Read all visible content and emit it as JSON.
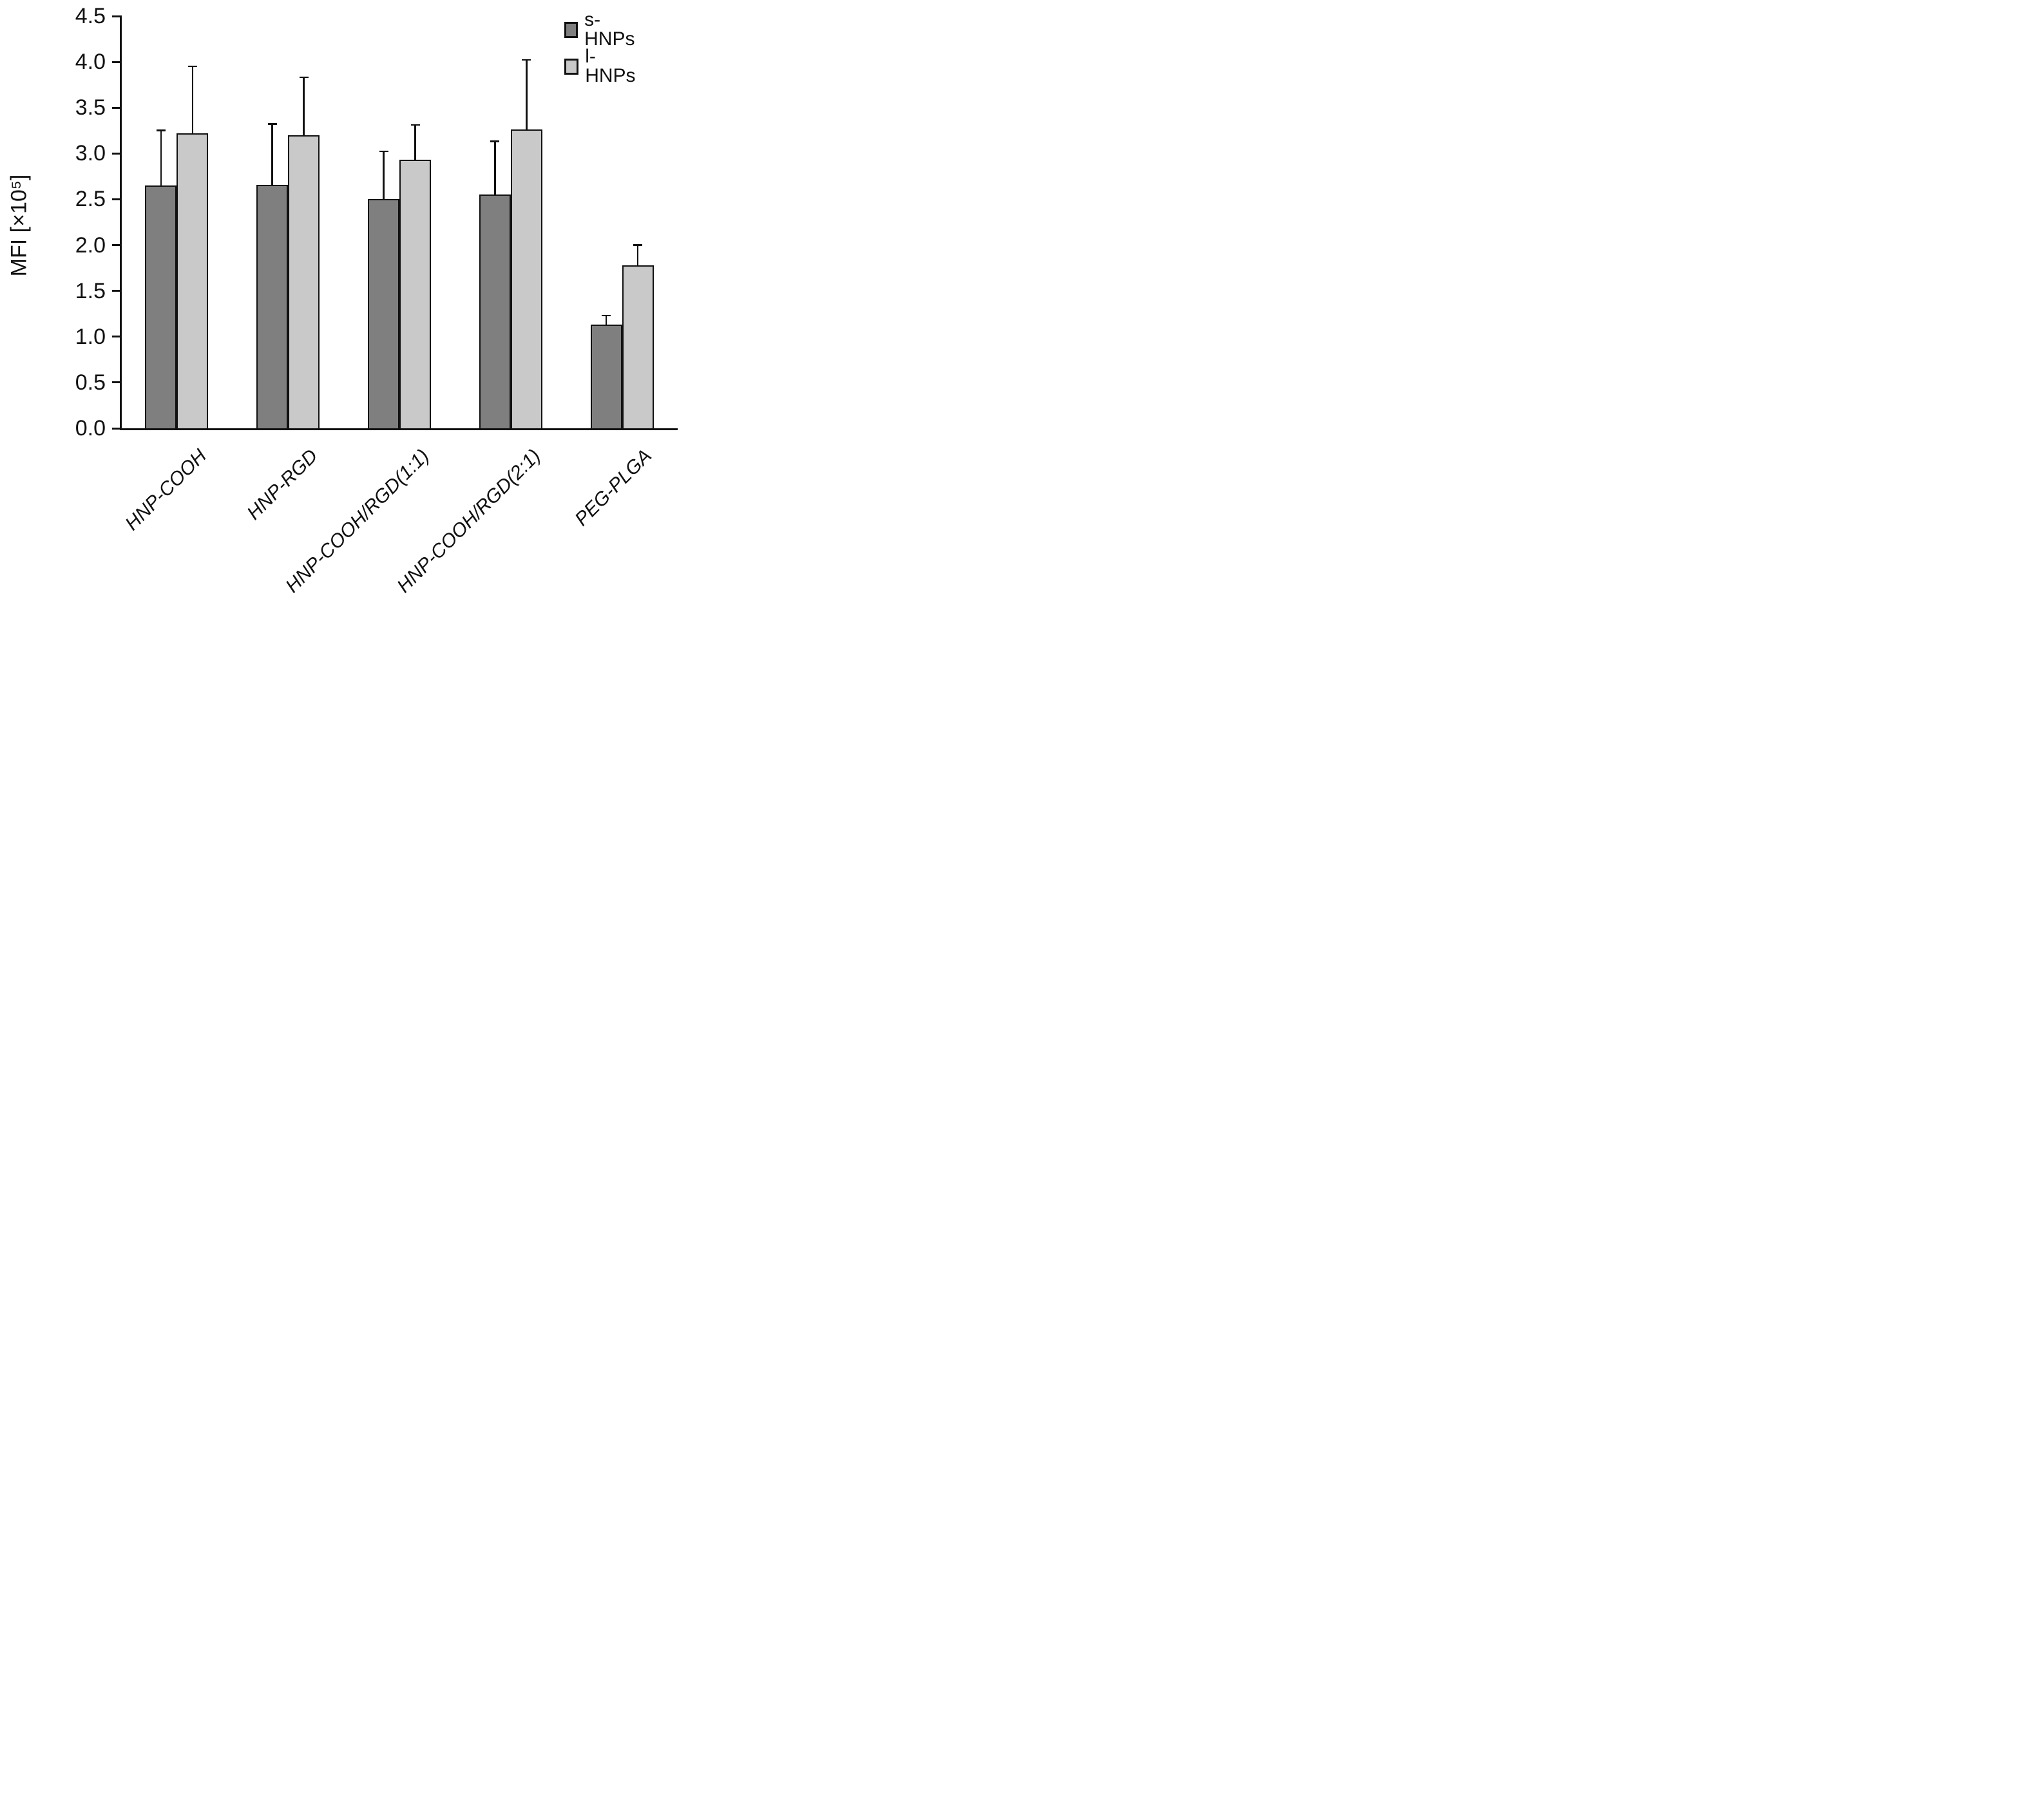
{
  "chart_data": {
    "type": "bar",
    "title": "",
    "xlabel": "",
    "ylabel": "MFI [×10⁵]",
    "ylim": [
      0.0,
      4.5
    ],
    "ytick_labels": [
      "4.5",
      "4.0",
      "3.5",
      "3.0",
      "2.5",
      "2.0",
      "1.5",
      "1.0",
      "0.5",
      "0.0"
    ],
    "grid": false,
    "legend_position": "top-right",
    "categories": [
      "HNP-COOH",
      "HNP-RGD",
      "HNP-COOH/RGD(1:1)",
      "HNP-COOH/RGD(2:1)",
      "PEG-PLGA"
    ],
    "series": [
      {
        "name": "s-HNPs",
        "color": "#7f7f7f",
        "values": [
          2.65,
          2.66,
          2.5,
          2.55,
          1.13
        ],
        "errors_plus": [
          0.6,
          0.66,
          0.52,
          0.58,
          0.1
        ]
      },
      {
        "name": "l-HNPs",
        "color": "#c9c9c9",
        "values": [
          3.22,
          3.2,
          2.93,
          3.26,
          1.78
        ],
        "errors_plus": [
          0.73,
          0.63,
          0.38,
          0.76,
          0.22
        ]
      }
    ],
    "colors": {
      "axis": "#111111",
      "bar_border": "#111111",
      "error_bar": "#111111",
      "background": "#ffffff"
    }
  }
}
